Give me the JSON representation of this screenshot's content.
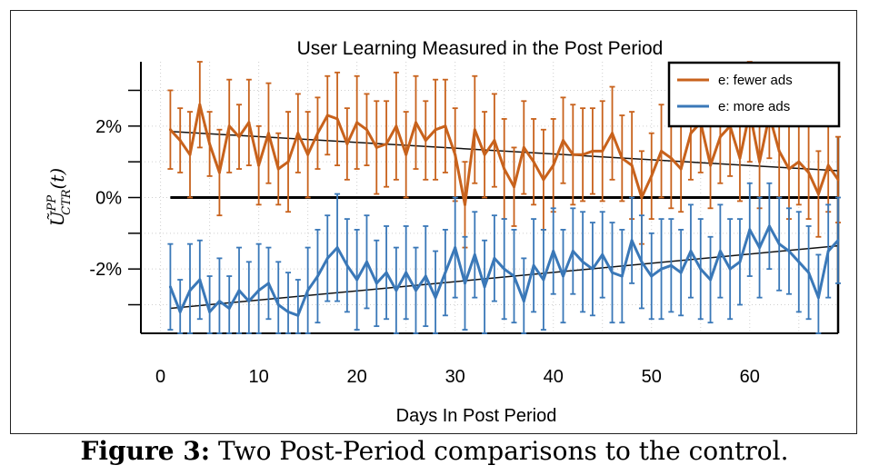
{
  "chart_data": {
    "type": "line",
    "title": "User Learning Measured in the Post Period",
    "xlabel": "Days In Post Period",
    "ylabel": "Ũ^PP_CTR(t)",
    "ylabel_main": "Ũ",
    "ylabel_sup": "PP",
    "ylabel_sub": "CTR",
    "ylabel_arg": "(t)",
    "xlim": [
      -2,
      69
    ],
    "ylim": [
      -3.8,
      3.8
    ],
    "xticks": [
      0,
      10,
      20,
      30,
      40,
      50,
      60
    ],
    "yticks": [
      2,
      0,
      -2
    ],
    "ytick_labels": [
      "2%",
      "0%",
      "-2%"
    ],
    "grid": true,
    "legend_position": "top-right",
    "zero_line": true,
    "series": [
      {
        "name": "e: fewer ads",
        "color": "#c8621c",
        "x": [
          1,
          2,
          3,
          4,
          5,
          6,
          7,
          8,
          9,
          10,
          11,
          12,
          13,
          14,
          15,
          16,
          17,
          18,
          19,
          20,
          21,
          22,
          23,
          24,
          25,
          26,
          27,
          28,
          29,
          30,
          31,
          32,
          33,
          34,
          35,
          36,
          37,
          38,
          39,
          40,
          41,
          42,
          43,
          44,
          45,
          46,
          47,
          48,
          49,
          50,
          51,
          52,
          53,
          54,
          55,
          56,
          57,
          58,
          59,
          60,
          61,
          62,
          63,
          64,
          65,
          66,
          67,
          68,
          69
        ],
        "values": [
          1.9,
          1.6,
          1.2,
          2.6,
          1.5,
          0.7,
          2.0,
          1.7,
          2.1,
          0.9,
          1.8,
          0.8,
          1.0,
          1.8,
          1.2,
          1.8,
          2.3,
          2.2,
          1.5,
          2.1,
          1.9,
          1.4,
          1.5,
          2.0,
          1.2,
          2.1,
          1.6,
          1.9,
          2.0,
          1.2,
          -0.2,
          1.9,
          1.2,
          1.6,
          0.8,
          0.3,
          1.4,
          1.0,
          0.5,
          0.9,
          1.6,
          1.2,
          1.2,
          1.3,
          1.3,
          1.8,
          1.1,
          0.9,
          0.0,
          0.6,
          1.3,
          1.1,
          0.8,
          1.8,
          2.1,
          0.9,
          1.7,
          2.0,
          1.1,
          2.4,
          1.0,
          2.3,
          1.3,
          0.8,
          1.0,
          0.7,
          0.1,
          0.9,
          0.5
        ],
        "error": [
          1.1,
          0.9,
          1.2,
          1.2,
          0.9,
          1.2,
          1.3,
          0.9,
          1.2,
          1.1,
          1.4,
          1.0,
          1.4,
          1.1,
          1.2,
          1.0,
          1.1,
          1.3,
          1.0,
          1.3,
          1.0,
          1.3,
          1.2,
          1.5,
          1.2,
          1.3,
          1.1,
          1.4,
          1.3,
          1.3,
          1.2,
          1.5,
          1.2,
          1.3,
          1.4,
          1.1,
          1.3,
          1.2,
          1.4,
          1.3,
          1.2,
          1.4,
          1.3,
          1.2,
          1.4,
          1.3,
          1.2,
          1.5,
          1.3,
          1.2,
          1.3,
          1.4,
          1.2,
          1.3,
          1.4,
          1.2,
          1.3,
          1.4,
          1.2,
          1.4,
          1.3,
          1.2,
          1.3,
          1.4,
          1.2,
          1.3,
          1.2,
          1.3,
          1.2
        ],
        "trend": [
          1.85,
          0.75
        ]
      },
      {
        "name": "e: more ads",
        "color": "#3a78b8",
        "x": [
          1,
          2,
          3,
          4,
          5,
          6,
          7,
          8,
          9,
          10,
          11,
          12,
          13,
          14,
          15,
          16,
          17,
          18,
          19,
          20,
          21,
          22,
          23,
          24,
          25,
          26,
          27,
          28,
          29,
          30,
          31,
          32,
          33,
          34,
          35,
          36,
          37,
          38,
          39,
          40,
          41,
          42,
          43,
          44,
          45,
          46,
          47,
          48,
          49,
          50,
          51,
          52,
          53,
          54,
          55,
          56,
          57,
          58,
          59,
          60,
          61,
          62,
          63,
          64,
          65,
          66,
          67,
          68,
          69
        ],
        "values": [
          -2.5,
          -3.2,
          -2.6,
          -2.3,
          -3.2,
          -2.9,
          -3.1,
          -2.6,
          -2.9,
          -2.6,
          -2.4,
          -3.0,
          -3.2,
          -3.3,
          -2.6,
          -2.2,
          -1.7,
          -1.4,
          -1.9,
          -2.3,
          -1.8,
          -2.4,
          -2.1,
          -2.6,
          -2.1,
          -2.6,
          -2.2,
          -2.8,
          -2.1,
          -1.4,
          -2.4,
          -1.6,
          -2.5,
          -1.7,
          -2.0,
          -2.2,
          -2.9,
          -1.9,
          -2.3,
          -1.5,
          -2.2,
          -1.5,
          -1.8,
          -2.0,
          -1.6,
          -2.1,
          -2.2,
          -1.2,
          -1.8,
          -2.2,
          -2.0,
          -1.9,
          -2.1,
          -1.5,
          -2.0,
          -2.3,
          -1.5,
          -2.0,
          -1.8,
          -0.9,
          -1.4,
          -0.8,
          -1.3,
          -1.5,
          -1.8,
          -2.1,
          -2.8,
          -1.5,
          -1.2
        ],
        "error": [
          1.2,
          0.9,
          1.3,
          1.1,
          1.0,
          1.2,
          0.9,
          1.2,
          1.1,
          1.3,
          1.0,
          1.2,
          1.1,
          1.0,
          1.2,
          1.3,
          1.2,
          1.5,
          1.3,
          1.4,
          1.3,
          1.2,
          1.3,
          1.2,
          1.3,
          1.2,
          1.4,
          1.3,
          1.2,
          1.4,
          1.3,
          1.2,
          1.3,
          1.2,
          1.4,
          1.3,
          1.2,
          1.3,
          1.4,
          1.2,
          1.3,
          1.2,
          1.4,
          1.3,
          1.2,
          1.4,
          1.3,
          1.2,
          1.3,
          1.2,
          1.4,
          1.3,
          1.2,
          1.3,
          1.4,
          1.2,
          1.3,
          1.4,
          1.2,
          1.3,
          1.4,
          1.2,
          1.3,
          1.2,
          1.4,
          1.3,
          1.2,
          1.3,
          1.2
        ],
        "trend": [
          -3.1,
          -1.35
        ]
      }
    ]
  },
  "caption": {
    "label": "Figure 3:",
    "text": "Two Post-Period comparisons to the control."
  }
}
